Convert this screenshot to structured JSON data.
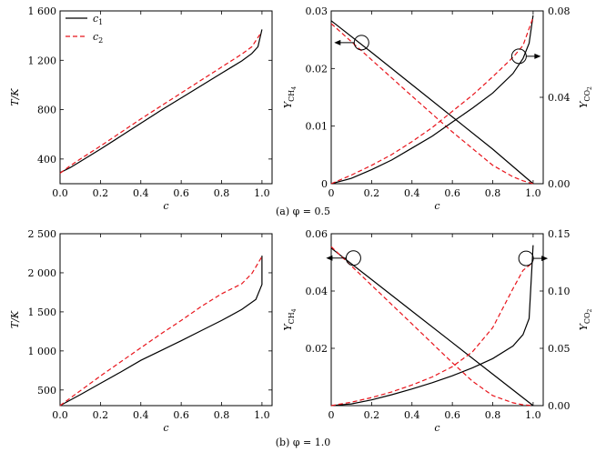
{
  "captions": {
    "top": "(a) φ = 0.5",
    "bottom": "(b) φ = 1.0"
  },
  "legend": {
    "c1": "c",
    "c1_sub": "1",
    "c2": "c",
    "c2_sub": "2"
  },
  "chart_data": [
    {
      "type": "line",
      "panel": "a-left",
      "xlabel": "c",
      "ylabel": "T/K",
      "xlim": [
        0,
        1.05
      ],
      "ylim": [
        200,
        1600
      ],
      "xticks": [
        0.0,
        0.2,
        0.4,
        0.6,
        0.8,
        1.0
      ],
      "xtick_labels": [
        "0.0",
        "0.2",
        "0.4",
        "0.6",
        "0.8",
        "1.0"
      ],
      "yticks": [
        400,
        800,
        1200,
        1600
      ],
      "ytick_labels": [
        "400",
        "800",
        "1 200",
        "1 600"
      ],
      "legend_position": "top-left",
      "series": [
        {
          "name": "c1",
          "style": "solid",
          "color": "#000000",
          "x": [
            0,
            0.05,
            0.1,
            0.2,
            0.3,
            0.4,
            0.5,
            0.6,
            0.7,
            0.8,
            0.9,
            0.95,
            0.98,
            1.0
          ],
          "y": [
            290,
            330,
            380,
            480,
            585,
            690,
            795,
            895,
            995,
            1095,
            1195,
            1255,
            1310,
            1450
          ]
        },
        {
          "name": "c2",
          "style": "dashed",
          "color": "#e8141b",
          "x": [
            0,
            0.05,
            0.1,
            0.2,
            0.3,
            0.4,
            0.5,
            0.6,
            0.7,
            0.8,
            0.9,
            0.95,
            0.99
          ],
          "y": [
            285,
            345,
            400,
            505,
            615,
            725,
            830,
            935,
            1040,
            1145,
            1250,
            1310,
            1410
          ]
        }
      ]
    },
    {
      "type": "line",
      "panel": "a-right",
      "xlabel": "c",
      "ylabel": "Y_CH4",
      "ylabel_base": "Y",
      "ylabel_sub": "CH",
      "ylabel_subsub": "4",
      "y2label_base": "Y",
      "y2label_sub": "CO",
      "y2label_subsub": "2",
      "xlim": [
        0,
        1.05
      ],
      "ylim": [
        0,
        0.03
      ],
      "y2lim": [
        0,
        0.08
      ],
      "xticks": [
        0.0,
        0.2,
        0.4,
        0.6,
        0.8,
        1.0
      ],
      "xtick_labels": [
        "0",
        "0.2",
        "0.4",
        "0.6",
        "0.8",
        "1.0"
      ],
      "yticks": [
        0.0,
        0.01,
        0.02,
        0.03
      ],
      "ytick_labels": [
        "0",
        "0.01",
        "0.02",
        "0.03"
      ],
      "y2ticks": [
        0.0,
        0.04,
        0.08
      ],
      "y2tick_labels": [
        "0.00",
        "0.04",
        "0.08"
      ],
      "series": [
        {
          "name": "c1 CH4",
          "axis": "left",
          "style": "solid",
          "color": "#000000",
          "x": [
            0,
            0.2,
            0.4,
            0.6,
            0.8,
            1.0
          ],
          "y": [
            0.0283,
            0.0228,
            0.0172,
            0.0116,
            0.006,
            0.0
          ]
        },
        {
          "name": "c2 CH4",
          "axis": "left",
          "style": "dashed",
          "color": "#e8141b",
          "x": [
            0,
            0.2,
            0.4,
            0.6,
            0.8,
            0.9,
            0.95,
            1.0
          ],
          "y": [
            0.0278,
            0.0215,
            0.0152,
            0.009,
            0.0032,
            0.0012,
            0.0005,
            0.0
          ]
        },
        {
          "name": "c1 CO2",
          "axis": "right",
          "style": "solid",
          "color": "#000000",
          "x": [
            0,
            0.1,
            0.2,
            0.3,
            0.4,
            0.5,
            0.6,
            0.7,
            0.8,
            0.9,
            0.95,
            0.98,
            1.0
          ],
          "y": [
            0.0,
            0.0025,
            0.0065,
            0.011,
            0.0165,
            0.022,
            0.0285,
            0.035,
            0.042,
            0.051,
            0.058,
            0.065,
            0.078
          ]
        },
        {
          "name": "c2 CO2",
          "axis": "right",
          "style": "dashed",
          "color": "#e8141b",
          "x": [
            0,
            0.1,
            0.2,
            0.3,
            0.4,
            0.5,
            0.6,
            0.7,
            0.8,
            0.9,
            0.95,
            1.0
          ],
          "y": [
            0.0,
            0.004,
            0.0085,
            0.0135,
            0.0195,
            0.026,
            0.0335,
            0.041,
            0.0495,
            0.0585,
            0.064,
            0.077
          ]
        }
      ],
      "markers": [
        {
          "x": 0.15,
          "y": 0.0245,
          "axis": "left",
          "arrow": "left"
        },
        {
          "x": 0.93,
          "y": 0.059,
          "axis": "right",
          "arrow": "right"
        }
      ]
    },
    {
      "type": "line",
      "panel": "b-left",
      "xlabel": "c",
      "ylabel": "T/K",
      "xlim": [
        0,
        1.05
      ],
      "ylim": [
        300,
        2500
      ],
      "xticks": [
        0.0,
        0.2,
        0.4,
        0.6,
        0.8,
        1.0
      ],
      "xtick_labels": [
        "0.0",
        "0.2",
        "0.4",
        "0.6",
        "0.8",
        "1.0"
      ],
      "yticks": [
        500,
        1000,
        1500,
        2000,
        2500
      ],
      "ytick_labels": [
        "500",
        "1 000",
        "1 500",
        "2 000",
        "2 500"
      ],
      "series": [
        {
          "name": "c1",
          "style": "solid",
          "color": "#000000",
          "x": [
            0,
            0.1,
            0.2,
            0.3,
            0.4,
            0.5,
            0.6,
            0.7,
            0.8,
            0.9,
            0.97,
            1.0,
            1.0
          ],
          "y": [
            300,
            440,
            585,
            730,
            880,
            1005,
            1130,
            1260,
            1390,
            1530,
            1660,
            1850,
            2220
          ]
        },
        {
          "name": "c2",
          "style": "dashed",
          "color": "#e8141b",
          "x": [
            0,
            0.1,
            0.2,
            0.3,
            0.4,
            0.5,
            0.6,
            0.7,
            0.8,
            0.9,
            0.95,
            0.98,
            1.0
          ],
          "y": [
            300,
            490,
            680,
            860,
            1040,
            1220,
            1390,
            1570,
            1730,
            1860,
            1990,
            2120,
            2210
          ]
        }
      ]
    },
    {
      "type": "line",
      "panel": "b-right",
      "xlabel": "c",
      "ylabel": "Y_CH4",
      "ylabel_base": "Y",
      "ylabel_sub": "CH",
      "ylabel_subsub": "4",
      "y2label_base": "Y",
      "y2label_sub": "CO",
      "y2label_subsub": "2",
      "xlim": [
        0,
        1.05
      ],
      "ylim": [
        0,
        0.06
      ],
      "y2lim": [
        0,
        0.15
      ],
      "xticks": [
        0.0,
        0.2,
        0.4,
        0.6,
        0.8,
        1.0
      ],
      "xtick_labels": [
        "0",
        "0.2",
        "0.4",
        "0.6",
        "0.8",
        "1.0"
      ],
      "yticks": [
        0.02,
        0.04,
        0.06
      ],
      "ytick_labels": [
        "0.02",
        "0.04",
        "0.06"
      ],
      "y2ticks": [
        0.0,
        0.05,
        0.1,
        0.15
      ],
      "y2tick_labels": [
        "0.00",
        "0.05",
        "0.10",
        "0.15"
      ],
      "series": [
        {
          "name": "c1 CH4",
          "axis": "left",
          "style": "solid",
          "color": "#000000",
          "x": [
            0,
            0.2,
            0.4,
            0.6,
            0.8,
            1.0
          ],
          "y": [
            0.055,
            0.044,
            0.033,
            0.022,
            0.011,
            0.0
          ]
        },
        {
          "name": "c2 CH4",
          "axis": "left",
          "style": "dashed",
          "color": "#e8141b",
          "x": [
            0,
            0.2,
            0.4,
            0.6,
            0.7,
            0.8,
            0.9,
            0.95,
            1.0
          ],
          "y": [
            0.0555,
            0.042,
            0.0285,
            0.015,
            0.0085,
            0.0035,
            0.001,
            0.0003,
            0.0
          ]
        },
        {
          "name": "c1 CO2",
          "axis": "right",
          "style": "solid",
          "color": "#000000",
          "x": [
            0,
            0.1,
            0.2,
            0.3,
            0.4,
            0.5,
            0.6,
            0.7,
            0.8,
            0.9,
            0.95,
            0.98,
            1.0
          ],
          "y": [
            0.0,
            0.0015,
            0.005,
            0.0095,
            0.0145,
            0.02,
            0.026,
            0.033,
            0.041,
            0.052,
            0.062,
            0.076,
            0.14
          ]
        },
        {
          "name": "c2 CO2",
          "axis": "right",
          "style": "dashed",
          "color": "#e8141b",
          "x": [
            0,
            0.1,
            0.2,
            0.3,
            0.4,
            0.5,
            0.6,
            0.7,
            0.8,
            0.85,
            0.9,
            0.95,
            1.0
          ],
          "y": [
            0.0,
            0.003,
            0.007,
            0.012,
            0.018,
            0.025,
            0.034,
            0.047,
            0.068,
            0.085,
            0.102,
            0.118,
            0.125
          ]
        }
      ],
      "markers": [
        {
          "x": 0.11,
          "y": 0.0515,
          "axis": "left",
          "arrow": "left"
        },
        {
          "x": 0.965,
          "y": 0.1285,
          "axis": "right",
          "arrow": "right"
        }
      ]
    }
  ]
}
